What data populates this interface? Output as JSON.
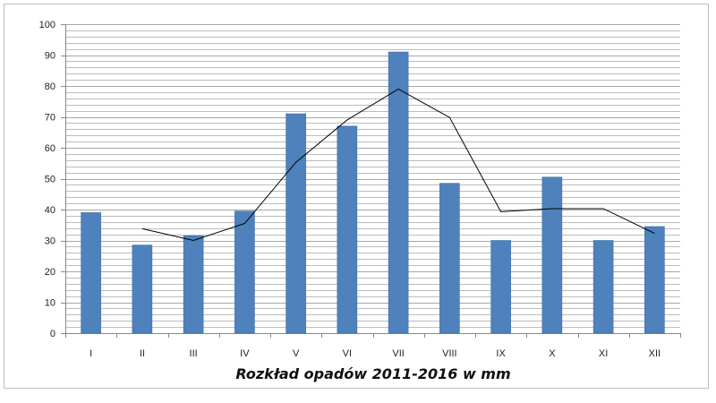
{
  "chart_data": {
    "type": "bar",
    "title": "Rozkład opadów 2011-2016 w mm",
    "categories": [
      "I",
      "II",
      "III",
      "IV",
      "V",
      "VI",
      "VII",
      "VIII",
      "IX",
      "X",
      "XI",
      "XII"
    ],
    "series": [
      {
        "type": "bar",
        "values": [
          39,
          28.5,
          31.5,
          39.5,
          71,
          67,
          91,
          48.5,
          30,
          50.5,
          30,
          34.5
        ]
      },
      {
        "type": "line",
        "values": [
          null,
          33.8,
          30.0,
          35.5,
          55.3,
          69.0,
          79.0,
          69.8,
          39.3,
          40.3,
          40.3,
          32.3
        ]
      }
    ],
    "ylim": [
      0,
      100
    ],
    "yticks": [
      0,
      10,
      20,
      30,
      40,
      50,
      60,
      70,
      80,
      90,
      100
    ],
    "grid": true,
    "colors": {
      "bar": "#4f81bd",
      "bar_edge": "#3a6ea5",
      "line": "#000000",
      "grid": "#a6a6a6"
    }
  }
}
